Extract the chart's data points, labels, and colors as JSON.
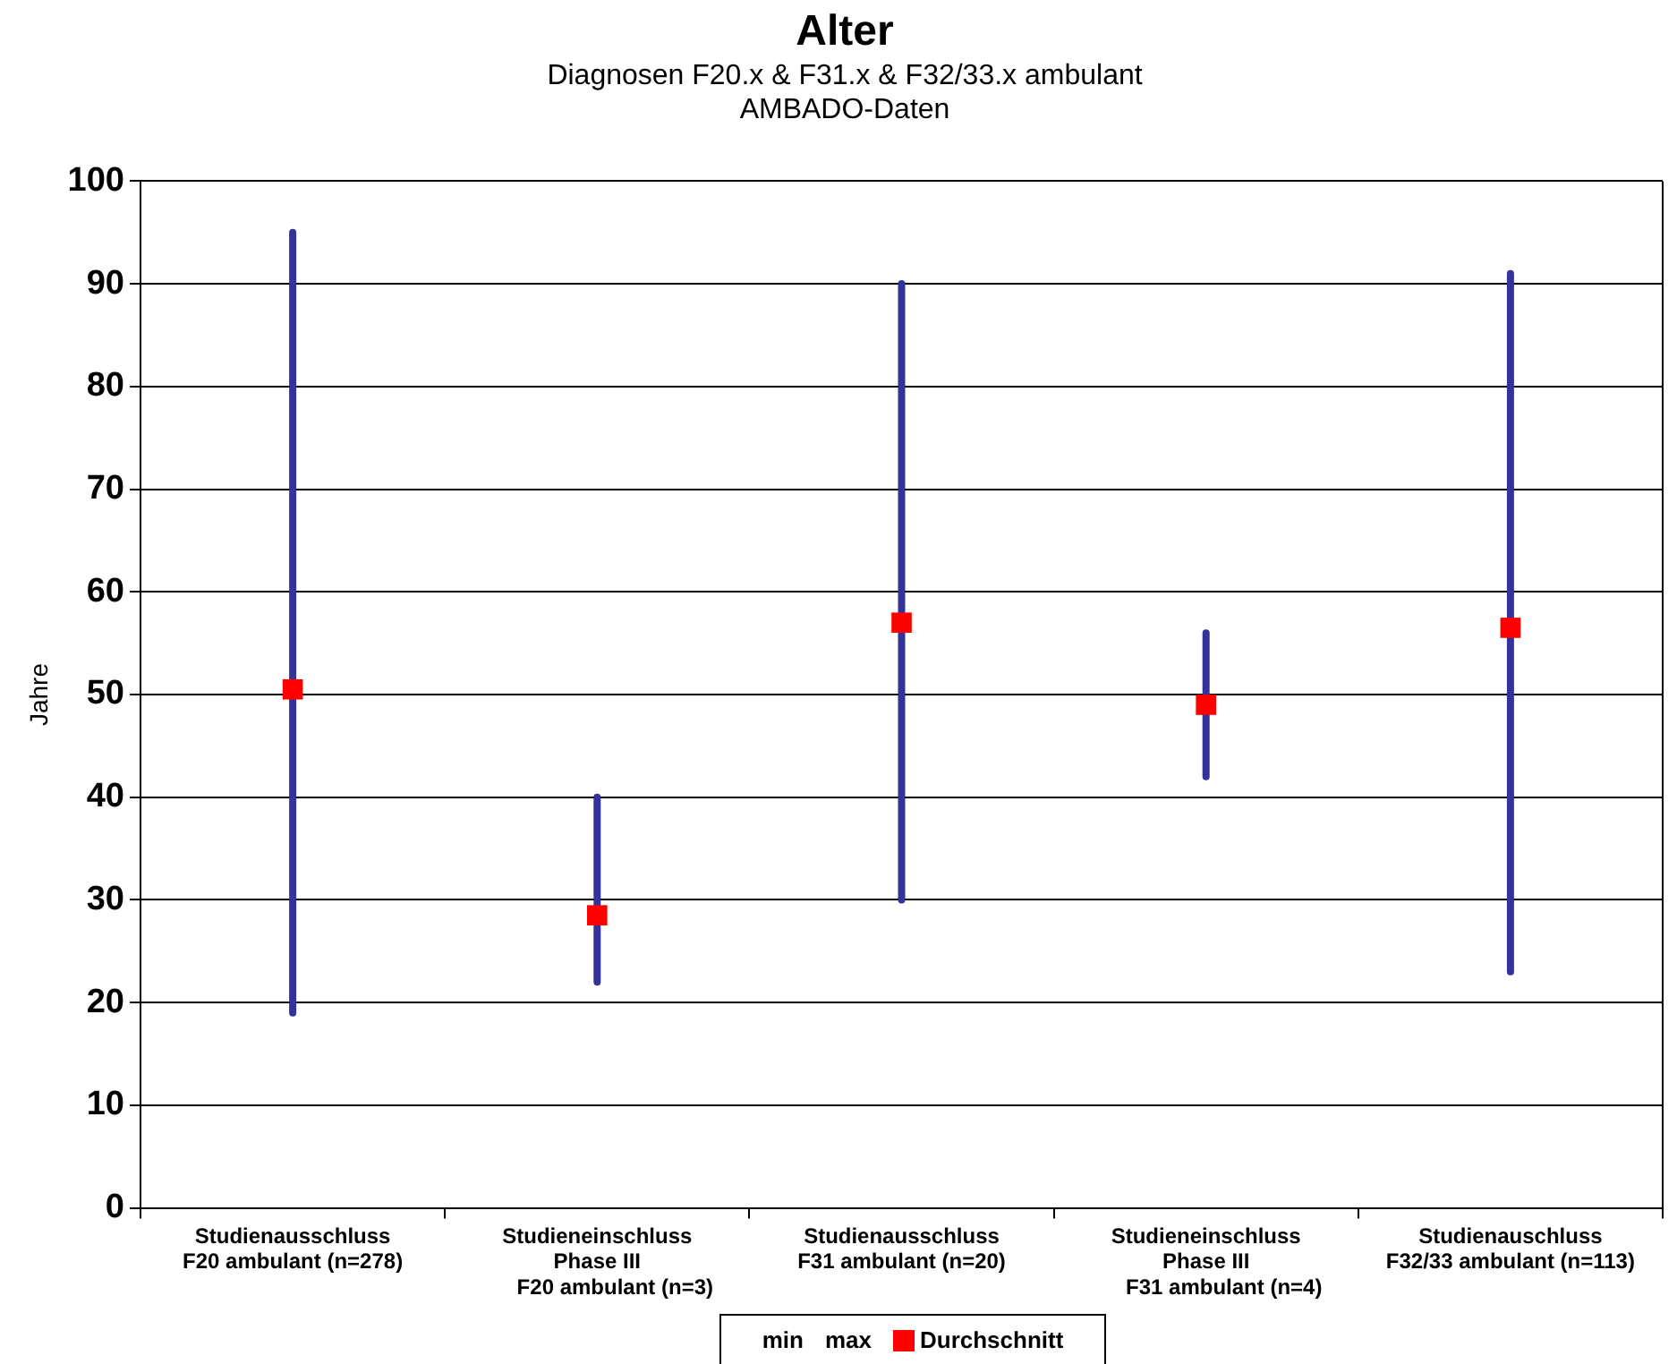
{
  "chart_data": {
    "type": "scatter",
    "title": "Alter",
    "subtitle": "Diagnosen F20.x & F31.x & F32/33.x ambulant\nAMBADO-Daten",
    "ylabel": "Jahre",
    "categories": [
      "Studienausschluss\nF20 ambulant (n=278)",
      "Studieneinschluss\nPhase III\n      F20 ambulant (n=3)",
      "Studienausschluss\nF31 ambulant (n=20)",
      "Studieneinschluss\nPhase III\n      F31 ambulant (n=4)",
      "Studienauschluss\nF32/33 ambulant (n=113)"
    ],
    "series": [
      {
        "name": "Durchschnitt",
        "color": "#ff0000",
        "marker": "square",
        "values": [
          50.5,
          28.5,
          57,
          49,
          56.5
        ],
        "errors": [
          [
            19,
            95
          ],
          [
            22,
            40
          ],
          [
            30,
            90
          ],
          [
            42,
            56
          ],
          [
            23,
            91
          ]
        ]
      }
    ],
    "annotations": [
      "min",
      "max"
    ],
    "ylim": [
      0,
      100
    ],
    "yticks": [
      0,
      10,
      20,
      30,
      40,
      50,
      60,
      70,
      80,
      90,
      100
    ],
    "grid": "y",
    "legend": "bottom"
  }
}
